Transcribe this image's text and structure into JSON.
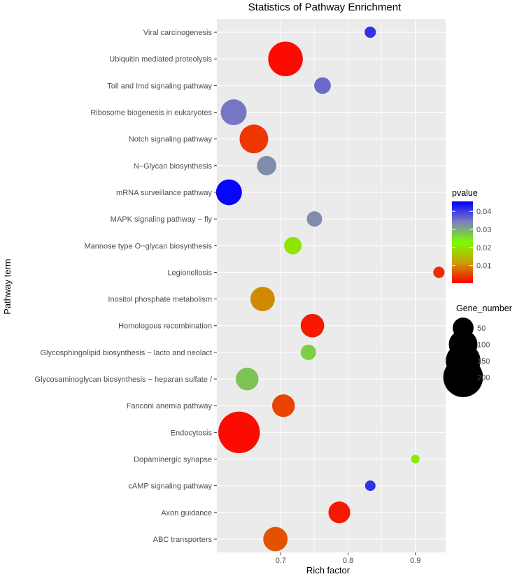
{
  "chart_data": {
    "type": "scatter",
    "title": "Statistics of Pathway Enrichment",
    "xlabel": "Rich factor",
    "ylabel": "Pathway term",
    "xlim": [
      0.605,
      0.945
    ],
    "x_ticks": [
      0.7,
      0.8,
      0.9
    ],
    "x_tick_labels": [
      "0.7",
      "0.8",
      "0.9"
    ],
    "grid": true,
    "legend_placement": "right",
    "categories": [
      "Viral carcinogenesis",
      "Ubiquitin mediated proteolysis",
      "Toll and Imd signaling pathway",
      "Ribosome biogenesis in eukaryotes",
      "Notch signaling pathway",
      "N−Glycan biosynthesis",
      "mRNA surveillance pathway",
      "MAPK signaling pathway − fly",
      "Mannose type O−glycan biosynthesis",
      "Legionellosis",
      "Inositol phosphate metabolism",
      "Homologous recombination",
      "Glycosphingolipid biosynthesis − lacto and neolact",
      "Glycosaminoglycan biosynthesis − heparan sulfate /",
      "Fanconi anemia pathway",
      "Endocytosis",
      "Dopaminergic synapse",
      "cAMP signaling pathway",
      "Axon guidance",
      "ABC transporters"
    ],
    "points": [
      {
        "term": "Viral carcinogenesis",
        "rich_factor": 0.833,
        "gene_number": 12,
        "pvalue": 0.041
      },
      {
        "term": "Ubiquitin mediated proteolysis",
        "rich_factor": 0.707,
        "gene_number": 150,
        "pvalue": 0.001
      },
      {
        "term": "Toll and Imd signaling pathway",
        "rich_factor": 0.762,
        "gene_number": 30,
        "pvalue": 0.036
      },
      {
        "term": "Ribosome biogenesis in eukaryotes",
        "rich_factor": 0.63,
        "gene_number": 80,
        "pvalue": 0.035
      },
      {
        "term": "Notch signaling pathway",
        "rich_factor": 0.66,
        "gene_number": 100,
        "pvalue": 0.004
      },
      {
        "term": "N−Glycan biosynthesis",
        "rich_factor": 0.679,
        "gene_number": 42,
        "pvalue": 0.033
      },
      {
        "term": "mRNA surveillance pathway",
        "rich_factor": 0.623,
        "gene_number": 80,
        "pvalue": 0.045
      },
      {
        "term": "MAPK signaling pathway − fly",
        "rich_factor": 0.75,
        "gene_number": 25,
        "pvalue": 0.033
      },
      {
        "term": "Mannose type O−glycan biosynthesis",
        "rich_factor": 0.718,
        "gene_number": 33,
        "pvalue": 0.02
      },
      {
        "term": "Legionellosis",
        "rich_factor": 0.935,
        "gene_number": 12,
        "pvalue": 0.003
      },
      {
        "term": "Inositol phosphate metabolism",
        "rich_factor": 0.673,
        "gene_number": 70,
        "pvalue": 0.01
      },
      {
        "term": "Homologous recombination",
        "rich_factor": 0.747,
        "gene_number": 65,
        "pvalue": 0.002
      },
      {
        "term": "Glycosphingolipid biosynthesis − lacto and neolact",
        "rich_factor": 0.741,
        "gene_number": 25,
        "pvalue": 0.027
      },
      {
        "term": "Glycosaminoglycan biosynthesis − heparan sulfate /",
        "rich_factor": 0.65,
        "gene_number": 60,
        "pvalue": 0.028
      },
      {
        "term": "Fanconi anemia pathway",
        "rich_factor": 0.704,
        "gene_number": 60,
        "pvalue": 0.005
      },
      {
        "term": "Endocytosis",
        "rich_factor": 0.638,
        "gene_number": 220,
        "pvalue": 0.001
      },
      {
        "term": "Dopaminergic synapse",
        "rich_factor": 0.9,
        "gene_number": 6,
        "pvalue": 0.021
      },
      {
        "term": "cAMP signaling pathway",
        "rich_factor": 0.833,
        "gene_number": 10,
        "pvalue": 0.041
      },
      {
        "term": "Axon guidance",
        "rich_factor": 0.787,
        "gene_number": 55,
        "pvalue": 0.002
      },
      {
        "term": "ABC transporters",
        "rich_factor": 0.692,
        "gene_number": 70,
        "pvalue": 0.006
      }
    ],
    "color_legend": {
      "title": "pvalue",
      "ticks": [
        0.04,
        0.03,
        0.02,
        0.01
      ],
      "tick_labels": [
        "0.04",
        "0.03",
        "0.02",
        "0.01"
      ],
      "range": [
        0.0002,
        0.0455
      ],
      "colors": {
        "low": "#ff0000",
        "mid": "#7cfc00",
        "high": "#0000ff"
      }
    },
    "size_legend": {
      "title": "Gene_number",
      "values": [
        50,
        100,
        150,
        200
      ],
      "labels": [
        "50",
        "100",
        "150",
        "200"
      ]
    }
  },
  "colors": {
    "panel_background": "#ebebeb",
    "grid_major": "#ffffff"
  }
}
